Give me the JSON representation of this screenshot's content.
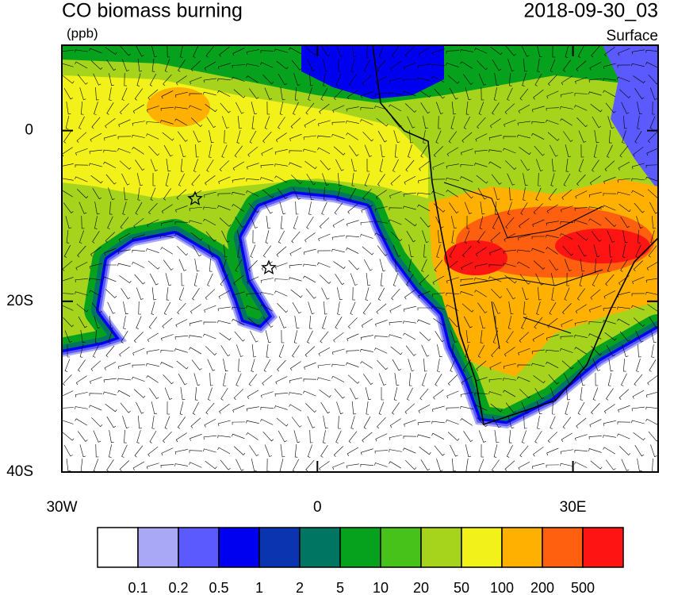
{
  "header": {
    "title": "CO biomass burning",
    "units": "(ppb)",
    "time": "2018-09-30_03",
    "level": "Surface"
  },
  "axes": {
    "lonlim": [
      -30,
      40
    ],
    "latlim": [
      -40,
      10
    ],
    "lon_ticks": [
      {
        "value": -30,
        "label": "30W"
      },
      0,
      {
        "value": 30,
        "label": "30E"
      }
    ],
    "lat_ticks": [
      0,
      {
        "value": -20,
        "label": "20S"
      },
      {
        "value": -40,
        "label": "40S"
      }
    ]
  },
  "colorbar": {
    "levels": [
      0.1,
      0.2,
      0.5,
      1,
      2,
      5,
      10,
      20,
      50,
      100,
      200,
      500
    ],
    "colors": [
      "#ffffff",
      "#a8a8f6",
      "#5a5aff",
      "#0000f0",
      "#0b34b0",
      "#007562",
      "#06a21e",
      "#46c21a",
      "#a6d41c",
      "#f2f21a",
      "#ffb000",
      "#ff6010",
      "#ff1414"
    ]
  }
}
